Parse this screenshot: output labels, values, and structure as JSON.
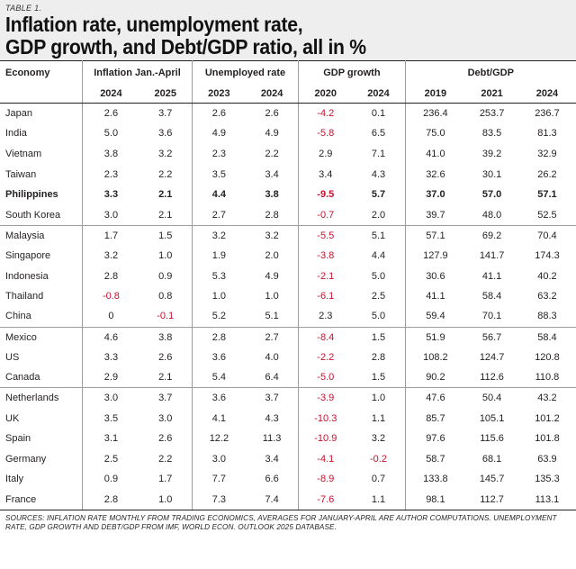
{
  "table_label": "TABLE 1.",
  "title_line1": "Inflation rate, unemployment rate,",
  "title_line2": "GDP growth, and Debt/GDP ratio, all in %",
  "headers": {
    "economy": "Economy",
    "inflation": "Inflation Jan.-April",
    "unemployed": "Unemployed rate",
    "gdp": "GDP growth",
    "debt": "Debt/GDP"
  },
  "years": [
    "2024",
    "2025",
    "2023",
    "2024",
    "2020",
    "2024",
    "2019",
    "2021",
    "2024"
  ],
  "rows": [
    {
      "economy": "Japan",
      "values": [
        "2.6",
        "3.7",
        "2.6",
        "2.6",
        "-4.2",
        "0.1",
        "236.4",
        "253.7",
        "236.7"
      ]
    },
    {
      "economy": "India",
      "values": [
        "5.0",
        "3.6",
        "4.9",
        "4.9",
        "-5.8",
        "6.5",
        "75.0",
        "83.5",
        "81.3"
      ]
    },
    {
      "economy": "Vietnam",
      "values": [
        "3.8",
        "3.2",
        "2.3",
        "2.2",
        "2.9",
        "7.1",
        "41.0",
        "39.2",
        "32.9"
      ]
    },
    {
      "economy": "Taiwan",
      "values": [
        "2.3",
        "2.2",
        "3.5",
        "3.4",
        "3.4",
        "4.3",
        "32.6",
        "30.1",
        "26.2"
      ]
    },
    {
      "economy": "Philippines",
      "values": [
        "3.3",
        "2.1",
        "4.4",
        "3.8",
        "-9.5",
        "5.7",
        "37.0",
        "57.0",
        "57.1"
      ]
    },
    {
      "economy": "South Korea",
      "values": [
        "3.0",
        "2.1",
        "2.7",
        "2.8",
        "-0.7",
        "2.0",
        "39.7",
        "48.0",
        "52.5"
      ]
    },
    {
      "economy": "Malaysia",
      "values": [
        "1.7",
        "1.5",
        "3.2",
        "3.2",
        "-5.5",
        "5.1",
        "57.1",
        "69.2",
        "70.4"
      ]
    },
    {
      "economy": "Singapore",
      "values": [
        "3.2",
        "1.0",
        "1.9",
        "2.0",
        "-3.8",
        "4.4",
        "127.9",
        "141.7",
        "174.3"
      ]
    },
    {
      "economy": "Indonesia",
      "values": [
        "2.8",
        "0.9",
        "5.3",
        "4.9",
        "-2.1",
        "5.0",
        "30.6",
        "41.1",
        "40.2"
      ]
    },
    {
      "economy": "Thailand",
      "values": [
        "-0.8",
        "0.8",
        "1.0",
        "1.0",
        "-6.1",
        "2.5",
        "41.1",
        "58.4",
        "63.2"
      ]
    },
    {
      "economy": "China",
      "values": [
        "0",
        "-0.1",
        "5.2",
        "5.1",
        "2.3",
        "5.0",
        "59.4",
        "70.1",
        "88.3"
      ]
    },
    {
      "economy": "Mexico",
      "values": [
        "4.6",
        "3.8",
        "2.8",
        "2.7",
        "-8.4",
        "1.5",
        "51.9",
        "56.7",
        "58.4"
      ]
    },
    {
      "economy": "US",
      "values": [
        "3.3",
        "2.6",
        "3.6",
        "4.0",
        "-2.2",
        "2.8",
        "108.2",
        "124.7",
        "120.8"
      ]
    },
    {
      "economy": "Canada",
      "values": [
        "2.9",
        "2.1",
        "5.4",
        "6.4",
        "-5.0",
        "1.5",
        "90.2",
        "112.6",
        "110.8"
      ]
    },
    {
      "economy": "Netherlands",
      "values": [
        "3.0",
        "3.7",
        "3.6",
        "3.7",
        "-3.9",
        "1.0",
        "47.6",
        "50.4",
        "43.2"
      ]
    },
    {
      "economy": "UK",
      "values": [
        "3.5",
        "3.0",
        "4.1",
        "4.3",
        "-10.3",
        "1.1",
        "85.7",
        "105.1",
        "101.2"
      ]
    },
    {
      "economy": "Spain",
      "values": [
        "3.1",
        "2.6",
        "12.2",
        "11.3",
        "-10.9",
        "3.2",
        "97.6",
        "115.6",
        "101.8"
      ]
    },
    {
      "economy": "Germany",
      "values": [
        "2.5",
        "2.2",
        "3.0",
        "3.4",
        "-4.1",
        "-0.2",
        "58.7",
        "68.1",
        "63.9"
      ]
    },
    {
      "economy": "Italy",
      "values": [
        "0.9",
        "1.7",
        "7.7",
        "6.6",
        "-8.9",
        "0.7",
        "133.8",
        "145.7",
        "135.3"
      ]
    },
    {
      "economy": "France",
      "values": [
        "2.8",
        "1.0",
        "7.3",
        "7.4",
        "-7.6",
        "1.1",
        "98.1",
        "112.7",
        "113.1"
      ]
    }
  ],
  "highlight_row": "Philippines",
  "colors": {
    "negative": "#c8102e",
    "header_bg": "#eeeeee"
  },
  "sources": "SOURCES: INFLATION RATE MONTHLY FROM TRADING ECONOMICS, AVERAGES FOR JANUARY-APRIL ARE AUTHOR COMPUTATIONS. UNEMPLOYMENT RATE, GDP GROWTH AND DEBT/GDP FROM IMF, WORLD ECON. OUTLOOK 2025 DATABASE."
}
